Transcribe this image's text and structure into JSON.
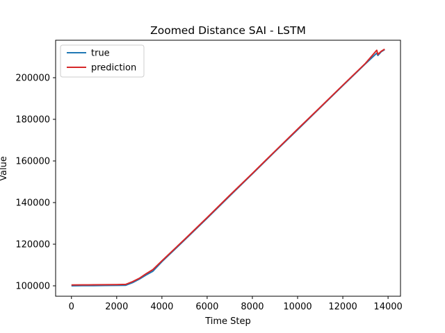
{
  "chart_data": {
    "type": "line",
    "title": "Zoomed Distance SAI - LSTM",
    "xlabel": "Time Step",
    "ylabel": "Value",
    "xlim": [
      -700,
      14550
    ],
    "ylim": [
      95000,
      218000
    ],
    "xticks": [
      0,
      2000,
      4000,
      6000,
      8000,
      10000,
      12000,
      14000
    ],
    "yticks": [
      100000,
      120000,
      140000,
      160000,
      180000,
      200000
    ],
    "grid": false,
    "legend_position": "top-left",
    "series": [
      {
        "name": "true",
        "color": "#1f77b4",
        "x": [
          0,
          500,
          1000,
          1500,
          2000,
          2400,
          2700,
          3000,
          3300,
          3600,
          4000,
          5000,
          6000,
          7000,
          8000,
          9000,
          10000,
          11000,
          12000,
          13000,
          13500,
          13550,
          13700,
          13850
        ],
        "y": [
          100000,
          100100,
          100100,
          100150,
          100200,
          100250,
          101500,
          103200,
          105200,
          107000,
          111600,
          122000,
          132500,
          143200,
          153800,
          164500,
          175000,
          185600,
          196200,
          206700,
          211800,
          210700,
          212500,
          213500
        ]
      },
      {
        "name": "prediction",
        "color": "#d62728",
        "x": [
          0,
          500,
          1000,
          1500,
          2000,
          2400,
          2700,
          3000,
          3300,
          3600,
          4000,
          5000,
          6000,
          7000,
          8000,
          9000,
          10000,
          11000,
          12000,
          13000,
          13500,
          13550,
          13700,
          13850
        ],
        "y": [
          100400,
          100450,
          100500,
          100550,
          100600,
          100700,
          102000,
          103600,
          105800,
          107800,
          112000,
          122300,
          132800,
          143500,
          154000,
          164700,
          175300,
          185800,
          196400,
          206900,
          213200,
          211200,
          212700,
          213700
        ]
      }
    ]
  }
}
